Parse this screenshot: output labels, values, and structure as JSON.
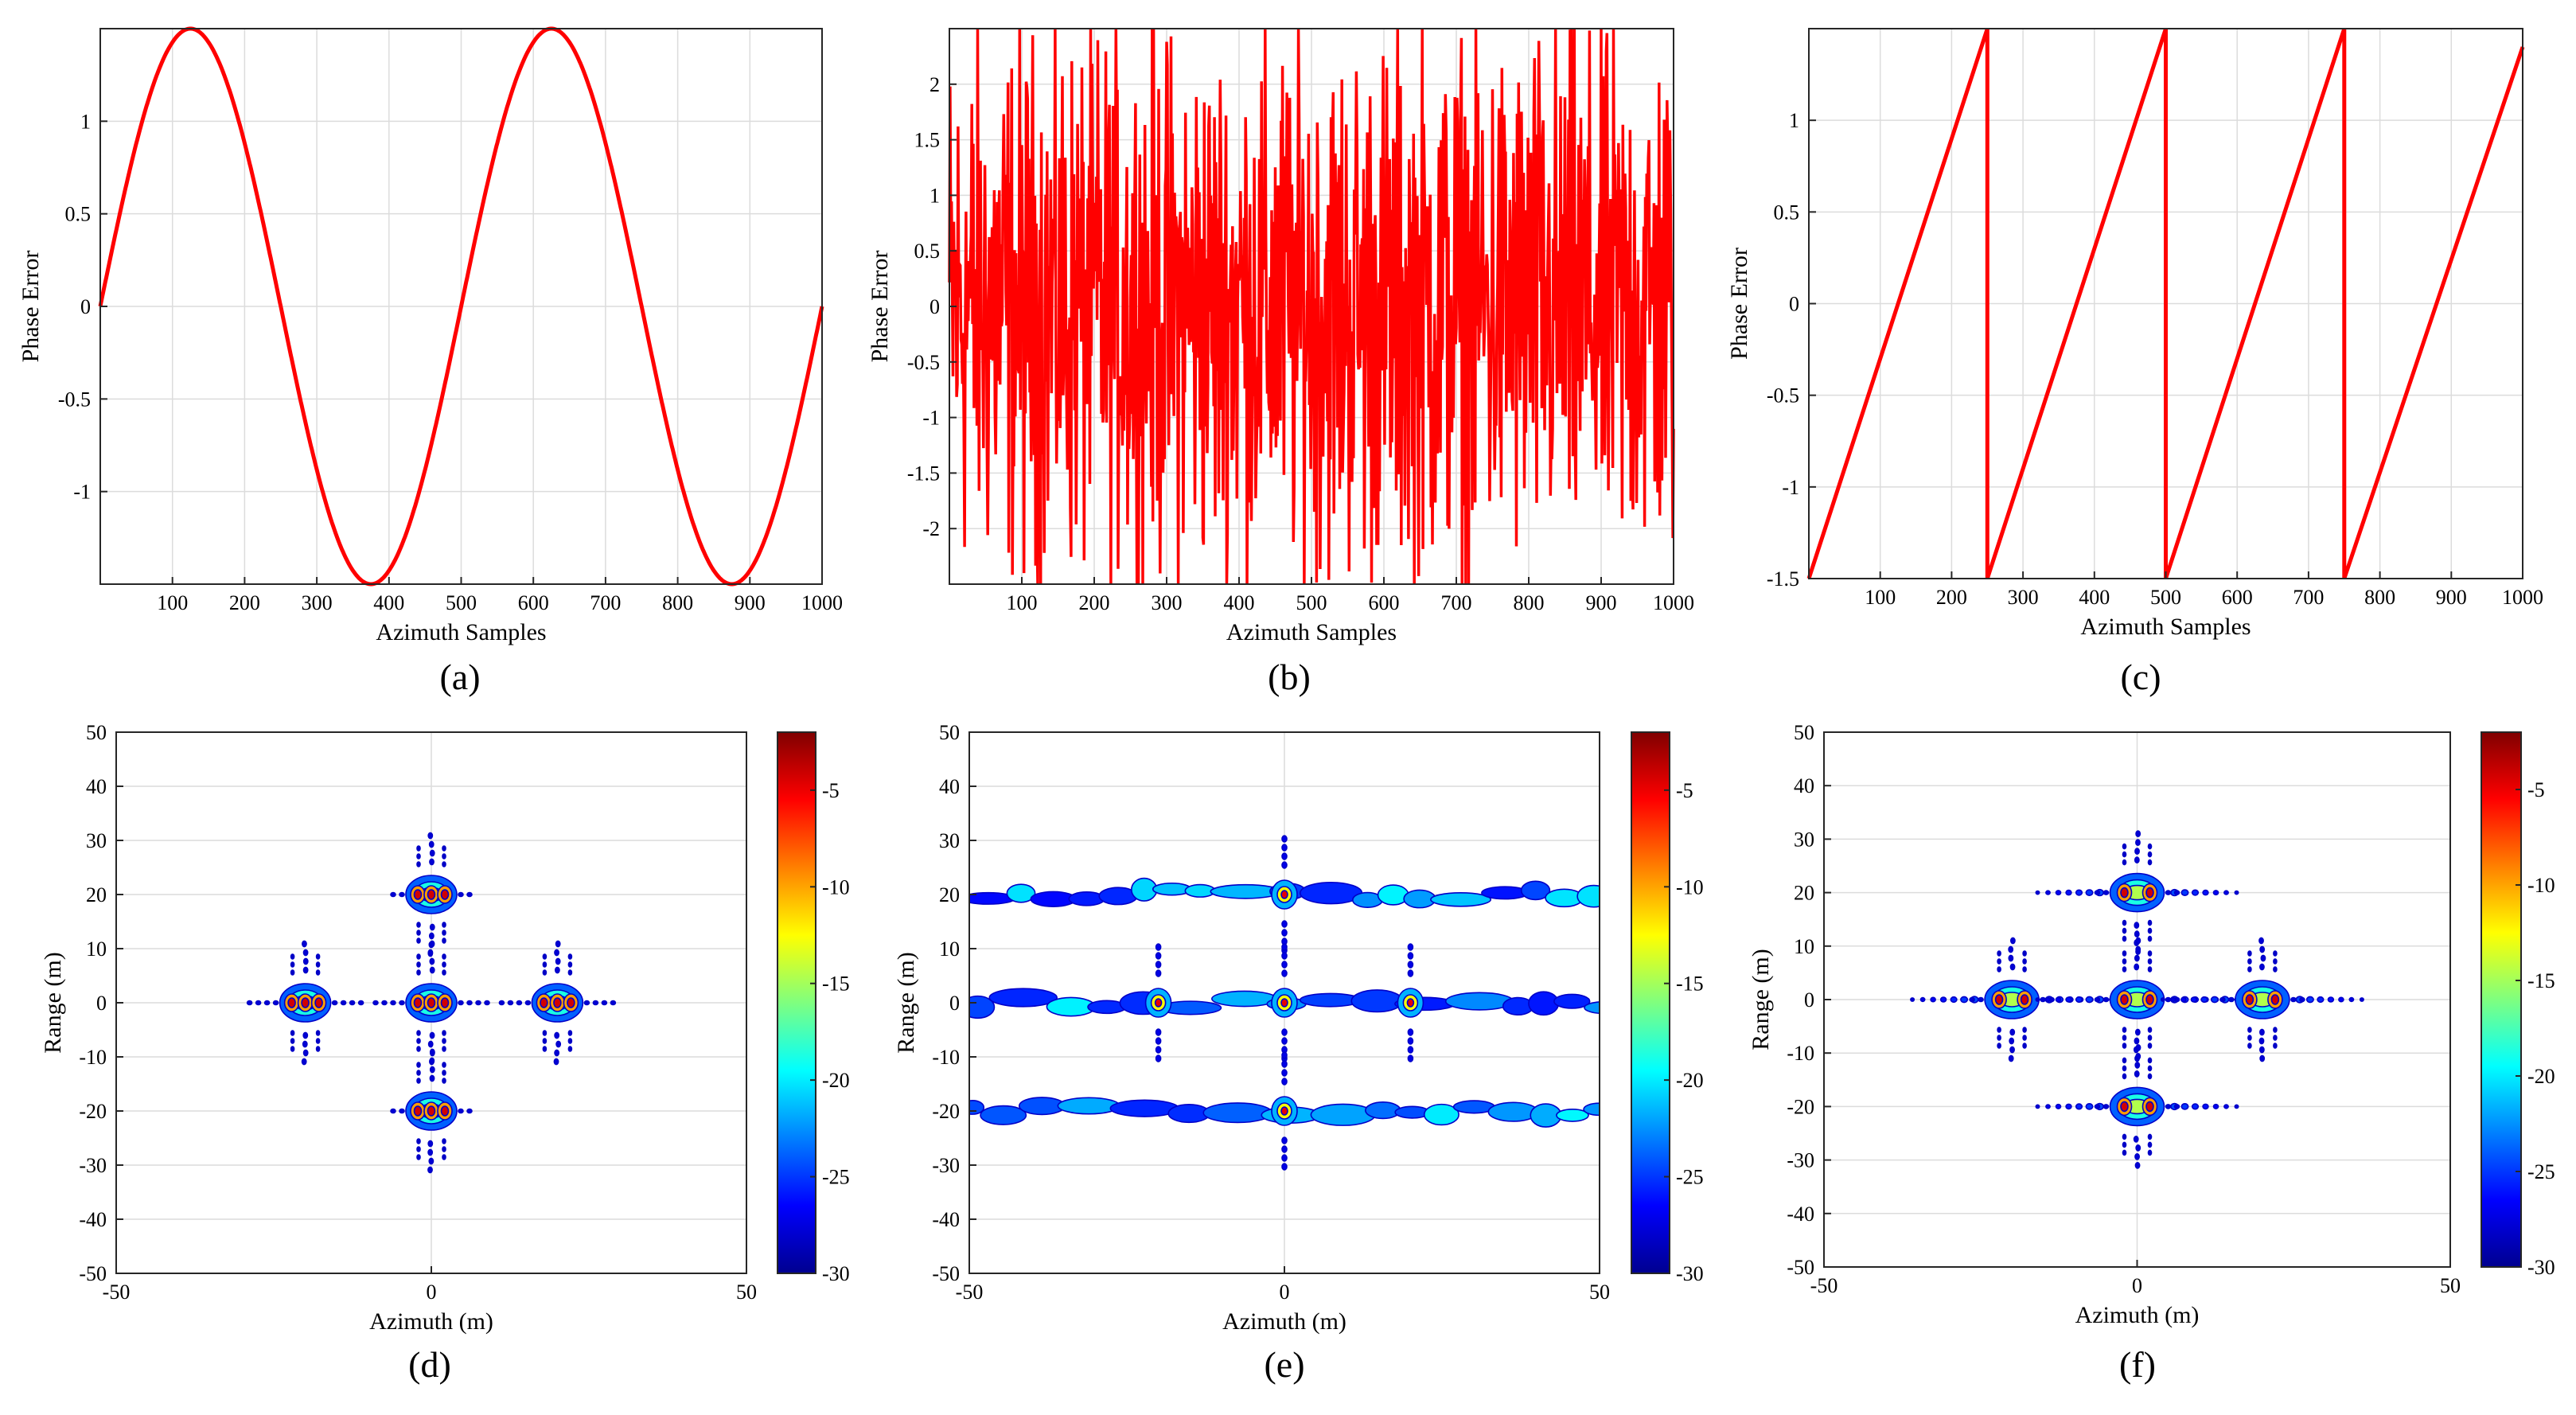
{
  "figure": {
    "colors": {
      "line": "#ff0000",
      "grid": "#dcdcdc",
      "axis": "#262626"
    }
  },
  "chart_data": [
    {
      "id": "a",
      "type": "line",
      "caption": "(a)",
      "title": "",
      "xlabel": "Azimuth Samples",
      "ylabel": "Phase Error",
      "xlim": [
        0,
        1000
      ],
      "ylim": [
        -1.5,
        1.5
      ],
      "xticks": [
        100,
        200,
        300,
        400,
        500,
        600,
        700,
        800,
        900,
        1000
      ],
      "yticks": [
        -1,
        -0.5,
        0,
        0.5,
        1
      ],
      "series": [
        {
          "name": "sinusoidal phase error",
          "x_range": [
            0,
            1000
          ],
          "n_points": 1000,
          "formula": "1.5*sin(2*pi*x/500)"
        }
      ],
      "grid": true
    },
    {
      "id": "b",
      "type": "line",
      "caption": "(b)",
      "title": "",
      "xlabel": "Azimuth Samples",
      "ylabel": "Phase Error",
      "xlim": [
        0,
        1000
      ],
      "ylim": [
        -2.5,
        2.5
      ],
      "xticks": [
        100,
        200,
        300,
        400,
        500,
        600,
        700,
        800,
        900,
        1000
      ],
      "yticks": [
        -2,
        -1.5,
        -1,
        -0.5,
        0,
        0.5,
        1,
        1.5,
        2
      ],
      "series": [
        {
          "name": "random phase error",
          "x_range": [
            0,
            1000
          ],
          "n_points": 1000,
          "distribution": "random",
          "amplitude": 2.5
        }
      ],
      "grid": true
    },
    {
      "id": "c",
      "type": "line",
      "caption": "(c)",
      "title": "",
      "xlabel": "Azimuth Samples",
      "ylabel": "Phase Error",
      "xlim": [
        0,
        1000
      ],
      "ylim": [
        -1.5,
        1.5
      ],
      "xticks": [
        100,
        200,
        300,
        400,
        500,
        600,
        700,
        800,
        900,
        1000
      ],
      "yticks": [
        -1.5,
        -1,
        -0.5,
        0,
        0.5,
        1
      ],
      "series": [
        {
          "name": "sawtooth phase error",
          "segments": [
            {
              "x": [
                0,
                250
              ],
              "y": [
                -1.5,
                1.5
              ]
            },
            {
              "x": [
                250,
                500
              ],
              "y": [
                -1.5,
                1.5
              ]
            },
            {
              "x": [
                500,
                750
              ],
              "y": [
                -1.5,
                1.5
              ]
            },
            {
              "x": [
                750,
                1000
              ],
              "y": [
                -1.5,
                1.4
              ]
            }
          ]
        }
      ],
      "grid": true
    },
    {
      "id": "d",
      "type": "heatmap",
      "caption": "(d)",
      "title": "",
      "xlabel": "Azimuth (m)",
      "ylabel": "Range (m)",
      "xlim": [
        -50,
        50
      ],
      "ylim": [
        -50,
        50
      ],
      "xticks": [
        -50,
        0,
        50
      ],
      "yticks": [
        -50,
        -40,
        -30,
        -20,
        -10,
        0,
        10,
        20,
        30,
        40,
        50
      ],
      "colorbar": {
        "ticks": [
          -30,
          -25,
          -20,
          -15,
          -10,
          -5
        ],
        "range": [
          -30,
          -2
        ]
      },
      "targets": [
        {
          "azimuth": 0,
          "range": 20
        },
        {
          "azimuth": -20,
          "range": 0
        },
        {
          "azimuth": 0,
          "range": 0
        },
        {
          "azimuth": 20,
          "range": 0
        },
        {
          "azimuth": 0,
          "range": -20
        }
      ],
      "defocus": "paired"
    },
    {
      "id": "e",
      "type": "heatmap",
      "caption": "(e)",
      "title": "",
      "xlabel": "Azimuth (m)",
      "ylabel": "Range (m)",
      "xlim": [
        -50,
        50
      ],
      "ylim": [
        -50,
        50
      ],
      "xticks": [
        -50,
        0,
        50
      ],
      "yticks": [
        -50,
        -40,
        -30,
        -20,
        -10,
        0,
        10,
        20,
        30,
        40,
        50
      ],
      "colorbar": {
        "ticks": [
          -30,
          -25,
          -20,
          -15,
          -10,
          -5
        ],
        "range": [
          -30,
          -2
        ]
      },
      "targets": [
        {
          "azimuth": 0,
          "range": 20
        },
        {
          "azimuth": -20,
          "range": 0
        },
        {
          "azimuth": 0,
          "range": 0
        },
        {
          "azimuth": 20,
          "range": 0
        },
        {
          "azimuth": 0,
          "range": -20
        }
      ],
      "defocus": "smeared"
    },
    {
      "id": "f",
      "type": "heatmap",
      "caption": "(f)",
      "title": "",
      "xlabel": "Azimuth (m)",
      "ylabel": "Range (m)",
      "xlim": [
        -50,
        50
      ],
      "ylim": [
        -50,
        50
      ],
      "xticks": [
        -50,
        0,
        50
      ],
      "yticks": [
        -50,
        -40,
        -30,
        -20,
        -10,
        0,
        10,
        20,
        30,
        40,
        50
      ],
      "colorbar": {
        "ticks": [
          -30,
          -25,
          -20,
          -15,
          -10,
          -5
        ],
        "range": [
          -30,
          -2
        ]
      },
      "targets": [
        {
          "azimuth": 0,
          "range": 20
        },
        {
          "azimuth": -20,
          "range": 0
        },
        {
          "azimuth": 0,
          "range": 0
        },
        {
          "azimuth": 20,
          "range": 0
        },
        {
          "azimuth": 0,
          "range": -20
        }
      ],
      "defocus": "paired-echoes"
    }
  ]
}
